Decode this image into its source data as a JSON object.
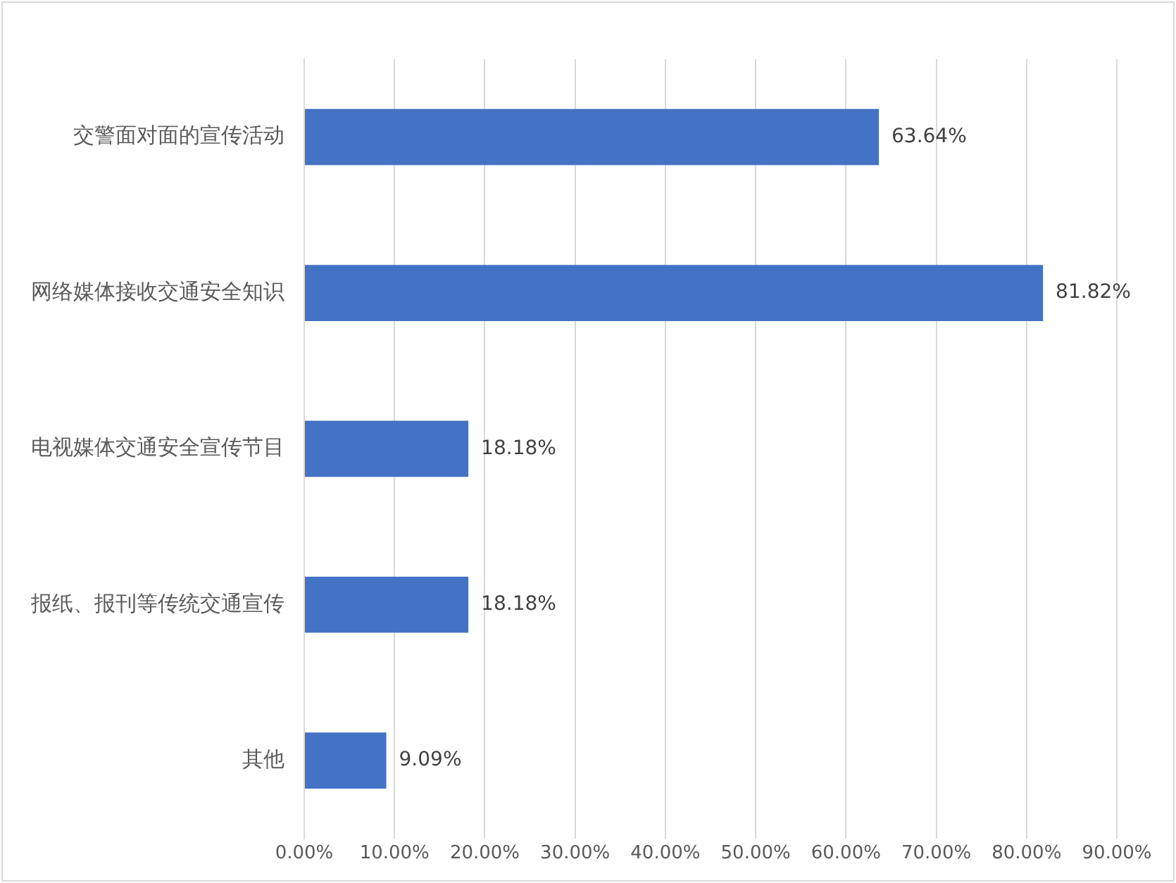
{
  "chart_data": {
    "type": "bar",
    "orientation": "horizontal",
    "categories": [
      "交警面对面的宣传活动",
      "网络媒体接收交通安全知识",
      "电视媒体交通安全宣传节目",
      "报纸、报刊等传统交通宣传",
      "其他"
    ],
    "values": [
      63.64,
      81.82,
      18.18,
      18.18,
      9.09
    ],
    "value_labels": [
      "63.64%",
      "81.82%",
      "18.18%",
      "18.18%",
      "9.09%"
    ],
    "color": "#4472c4",
    "xlim": [
      0,
      90
    ],
    "xticks": [
      {
        "value": 0,
        "label": "0.00%"
      },
      {
        "value": 10,
        "label": "10.00%"
      },
      {
        "value": 20,
        "label": "20.00%"
      },
      {
        "value": 30,
        "label": "30.00%"
      },
      {
        "value": 40,
        "label": "40.00%"
      },
      {
        "value": 50,
        "label": "50.00%"
      },
      {
        "value": 60,
        "label": "60.00%"
      },
      {
        "value": 70,
        "label": "70.00%"
      },
      {
        "value": 80,
        "label": "80.00%"
      },
      {
        "value": 90,
        "label": "90.00%"
      }
    ],
    "grid": "x",
    "legend": false
  }
}
